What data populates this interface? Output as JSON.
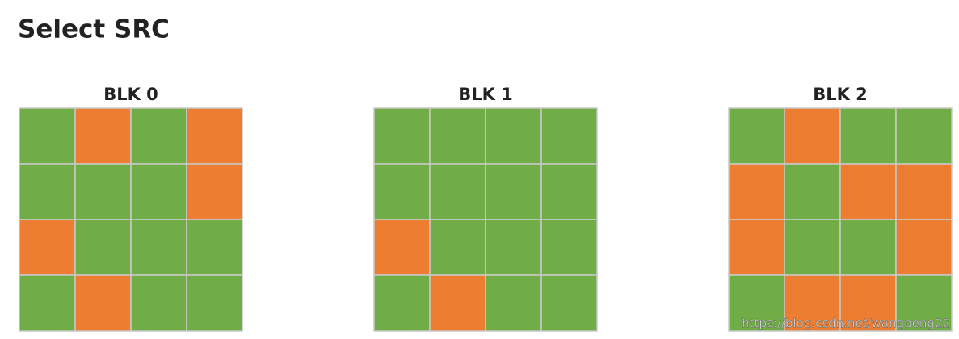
{
  "header": {
    "title": "Select SRC"
  },
  "blocks": [
    {
      "label": "BLK 0",
      "cells": [
        [
          "#70ad47",
          "#ed7d31",
          "#70ad47",
          "#ed7d31"
        ],
        [
          "#70ad47",
          "#70ad47",
          "#70ad47",
          "#ed7d31"
        ],
        [
          "#ed7d31",
          "#70ad47",
          "#70ad47",
          "#70ad47"
        ],
        [
          "#70ad47",
          "#ed7d31",
          "#70ad47",
          "#70ad47"
        ]
      ]
    },
    {
      "label": "BLK 1",
      "cells": [
        [
          "#70ad47",
          "#70ad47",
          "#70ad47",
          "#70ad47"
        ],
        [
          "#70ad47",
          "#70ad47",
          "#70ad47",
          "#70ad47"
        ],
        [
          "#ed7d31",
          "#70ad47",
          "#70ad47",
          "#70ad47"
        ],
        [
          "#70ad47",
          "#ed7d31",
          "#70ad47",
          "#70ad47"
        ]
      ]
    },
    {
      "label": "BLK 2",
      "cells": [
        [
          "#70ad47",
          "#ed7d31",
          "#70ad47",
          "#70ad47"
        ],
        [
          "#ed7d31",
          "#70ad47",
          "#ed7d31",
          "#ed7d31"
        ],
        [
          "#ed7d31",
          "#70ad47",
          "#70ad47",
          "#ed7d31"
        ],
        [
          "#70ad47",
          "#ed7d31",
          "#ed7d31",
          "#70ad47"
        ]
      ]
    }
  ],
  "watermark": "https://blog.csdn.net/wangpeng22"
}
